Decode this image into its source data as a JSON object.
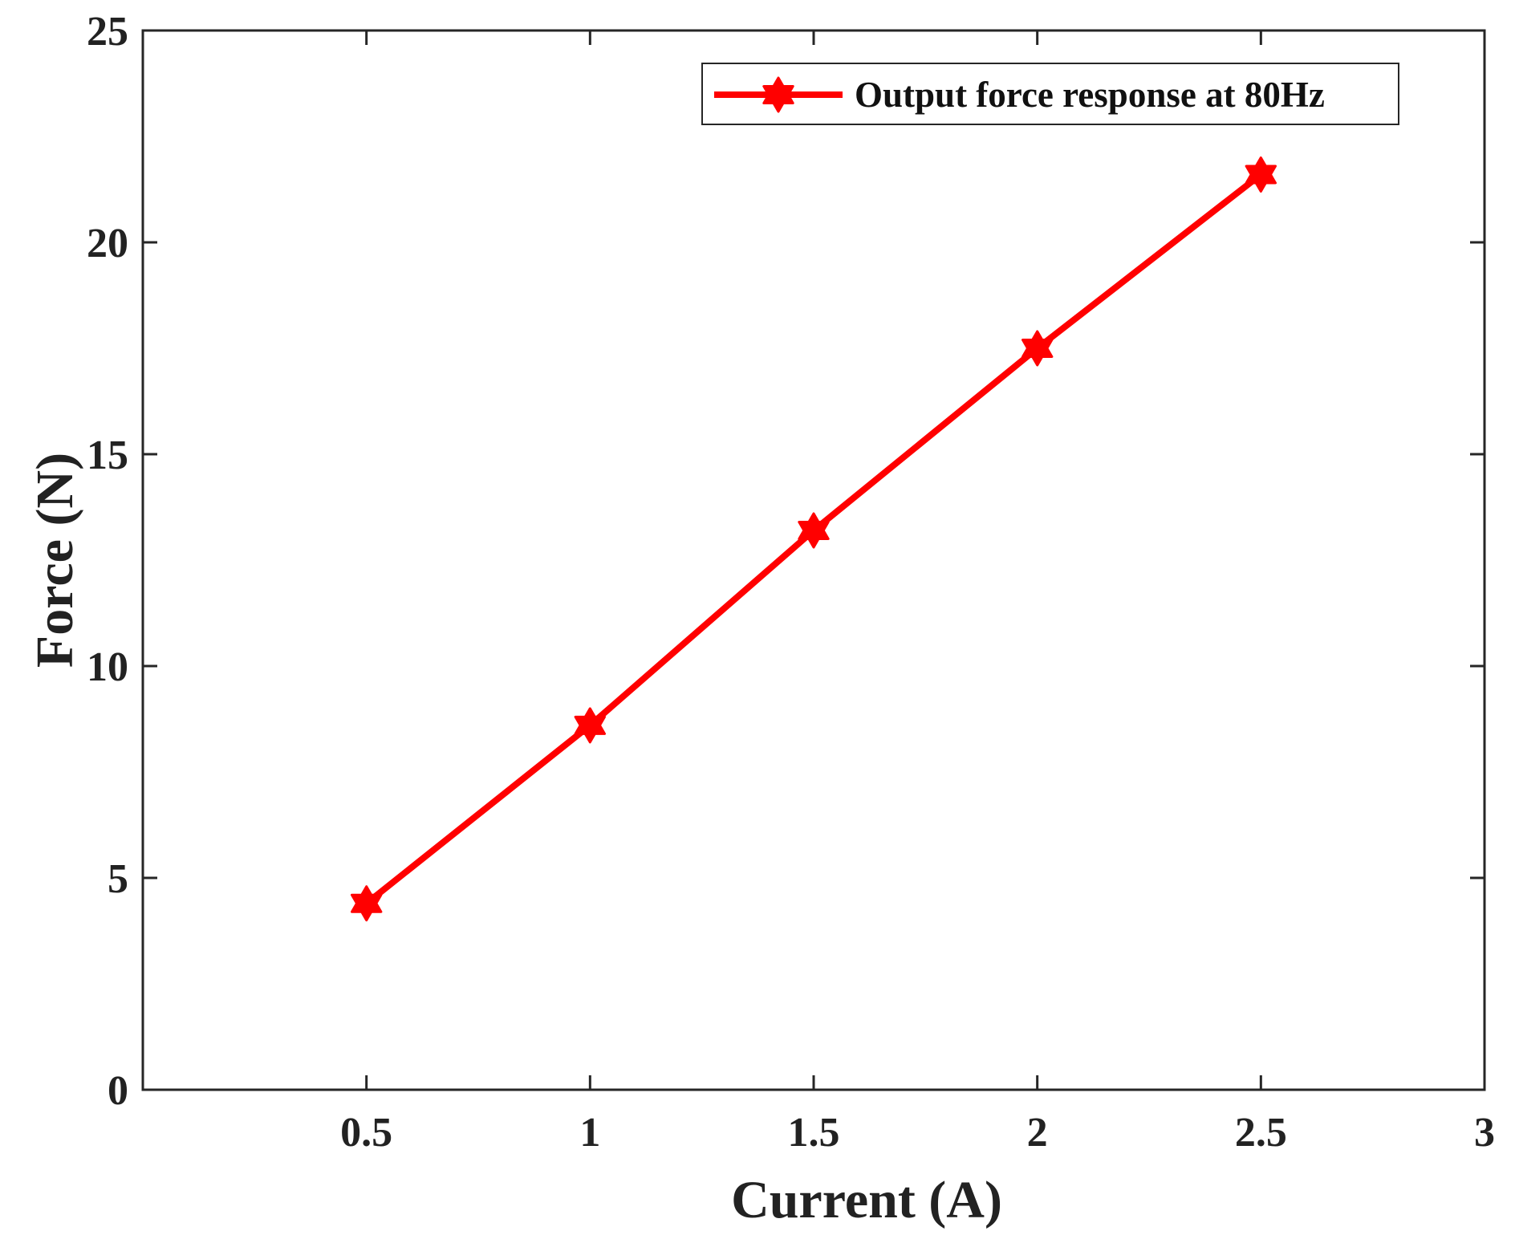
{
  "chart_data": {
    "type": "line",
    "xlabel": "Current (A)",
    "ylabel": "Force (N)",
    "xlim": [
      0,
      3
    ],
    "ylim": [
      0,
      25
    ],
    "xticks": [
      0.5,
      1,
      1.5,
      2,
      2.5,
      3
    ],
    "xtick_labels": [
      "0.5",
      "1",
      "1.5",
      "2",
      "2.5",
      "3"
    ],
    "yticks": [
      0,
      5,
      10,
      15,
      20,
      25
    ],
    "ytick_labels": [
      "0",
      "5",
      "10",
      "15",
      "20",
      "25"
    ],
    "grid": false,
    "legend": {
      "position": "top-right"
    },
    "series": [
      {
        "name": "Output force response at 80Hz",
        "color": "#ff0000",
        "marker": "hexagram",
        "x": [
          0.5,
          1,
          1.5,
          2,
          2.5
        ],
        "y": [
          4.4,
          8.6,
          13.2,
          17.5,
          21.6
        ]
      }
    ]
  }
}
